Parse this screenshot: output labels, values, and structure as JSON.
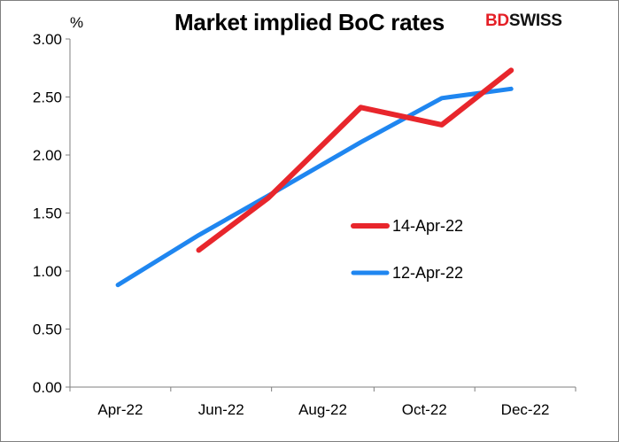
{
  "title": "Market implied BoC rates",
  "unit": "%",
  "logo": {
    "part1": "BD",
    "part2": "SWISS"
  },
  "chart_data": {
    "type": "line",
    "title": "Market implied BoC rates",
    "ylabel": "%",
    "xlabel": "",
    "ylim": [
      0,
      3.0
    ],
    "yticks": [
      "0.00",
      "0.50",
      "1.00",
      "1.50",
      "2.00",
      "2.50",
      "3.00"
    ],
    "ytick_values": [
      0,
      0.5,
      1.0,
      1.5,
      2.0,
      2.5,
      3.0
    ],
    "xticks": [
      "Apr-22",
      "Jun-22",
      "Aug-22",
      "Oct-22",
      "Dec-22"
    ],
    "xlim": [
      "2022-03-15",
      "2023-01-15"
    ],
    "xtick_dates": [
      "2022-03-15",
      "2022-05-15",
      "2022-07-15",
      "2022-09-15",
      "2022-11-15",
      "2023-01-15"
    ],
    "grid": false,
    "legend_placement": "center-right",
    "series": [
      {
        "name": "14-Apr-22",
        "color": "#e8262c",
        "x": [
          "2022-06-01",
          "2022-07-13",
          "2022-09-07",
          "2022-10-26",
          "2022-12-07"
        ],
        "y": [
          1.18,
          1.63,
          2.41,
          2.26,
          2.73
        ]
      },
      {
        "name": "12-Apr-22",
        "color": "#1f86f0",
        "x": [
          "2022-04-13",
          "2022-06-01",
          "2022-07-13",
          "2022-09-07",
          "2022-10-26",
          "2022-12-07"
        ],
        "y": [
          0.88,
          1.31,
          1.65,
          2.11,
          2.49,
          2.57
        ]
      }
    ]
  }
}
